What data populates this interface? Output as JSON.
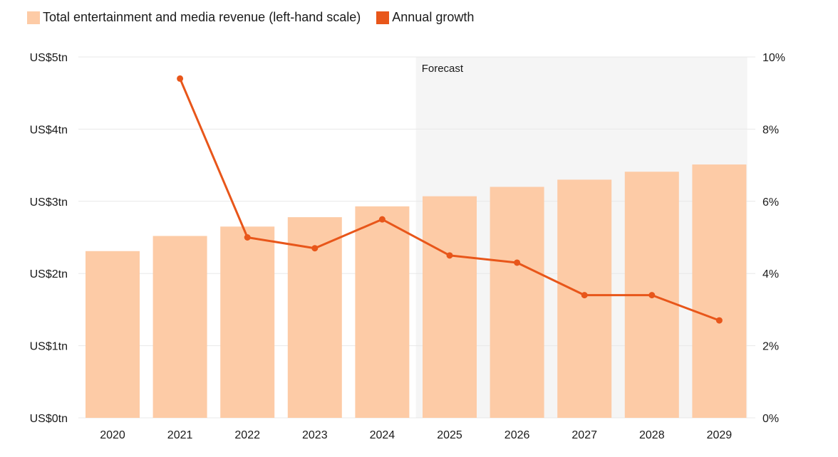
{
  "chart_data": {
    "type": "bar",
    "title": "",
    "xlabel": "",
    "ylabel": "",
    "categories": [
      "2020",
      "2021",
      "2022",
      "2023",
      "2024",
      "2025",
      "2026",
      "2027",
      "2028",
      "2029"
    ],
    "series": [
      {
        "name": "Total entertainment and media revenue (left-hand scale)",
        "type": "bar",
        "axis": "left",
        "unit": "US$ trillion",
        "color": "#fdcba6",
        "values": [
          2.31,
          2.52,
          2.65,
          2.78,
          2.93,
          3.07,
          3.2,
          3.3,
          3.41,
          3.51
        ]
      },
      {
        "name": "Annual growth",
        "type": "line",
        "axis": "right",
        "unit": "%",
        "color": "#e8561a",
        "values": [
          null,
          9.4,
          5.0,
          4.7,
          5.5,
          4.5,
          4.3,
          3.4,
          3.4,
          2.7
        ]
      }
    ],
    "left_axis": {
      "ylim": [
        0,
        5
      ],
      "ticks": [
        0,
        1,
        2,
        3,
        4,
        5
      ],
      "tick_labels": [
        "US$0tn",
        "US$1tn",
        "US$2tn",
        "US$3tn",
        "US$4tn",
        "US$5tn"
      ]
    },
    "right_axis": {
      "ylim": [
        0,
        10
      ],
      "ticks": [
        0,
        2,
        4,
        6,
        8,
        10
      ],
      "tick_labels": [
        "0%",
        "2%",
        "4%",
        "6%",
        "8%",
        "10%"
      ]
    },
    "forecast_region": {
      "label": "Forecast",
      "start_category": "2025",
      "end_category": "2029",
      "color": "#f5f5f5"
    },
    "grid": true,
    "legend_position": "top-left"
  }
}
